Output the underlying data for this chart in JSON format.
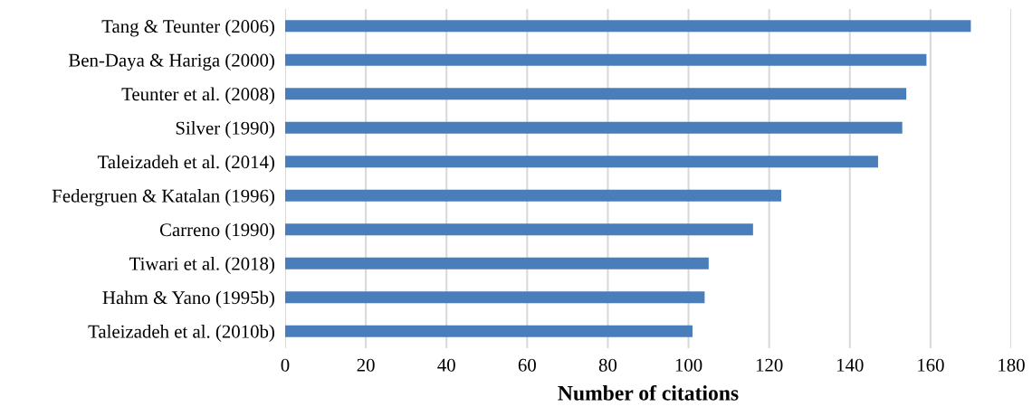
{
  "chart_data": {
    "type": "bar",
    "orientation": "horizontal",
    "xlabel": "Number of citations",
    "categories": [
      "Tang & Teunter (2006)",
      "Ben-Daya & Hariga (2000)",
      "Teunter et al. (2008)",
      "Silver (1990)",
      "Taleizadeh et al. (2014)",
      "Federgruen & Katalan (1996)",
      "Carreno (1990)",
      "Tiwari et al. (2018)",
      "Hahm & Yano (1995b)",
      "Taleizadeh et al. (2010b)"
    ],
    "values": [
      170,
      159,
      154,
      153,
      147,
      123,
      116,
      105,
      104,
      101
    ],
    "color": "#4a7ebb",
    "xlim": [
      0,
      180
    ],
    "xticks": [
      0,
      20,
      40,
      60,
      80,
      100,
      120,
      140,
      160,
      180
    ],
    "grid": "x"
  }
}
